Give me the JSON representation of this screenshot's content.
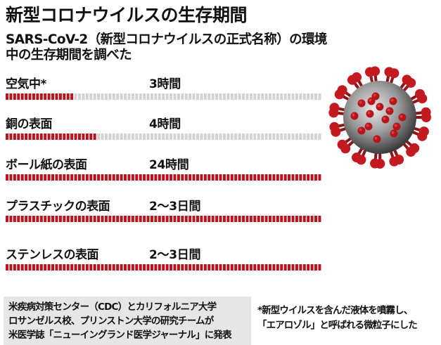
{
  "title": "新型コロナウイルスの生存期間",
  "subtitle": "SARS-CoV-2（新型コロナウイルスの正式名称）の環境中の生存期間を調べた",
  "chart_data": {
    "type": "bar",
    "unit": "hours",
    "categories": [
      "空気中*",
      "銅の表面",
      "ボール紙の表面",
      "プラスチックの表面",
      "ステンレスの表面"
    ],
    "value_labels": [
      "3時間",
      "4時間",
      "24時間",
      "2〜3日間",
      "2〜3日間"
    ],
    "values": [
      3,
      4,
      24,
      72,
      72
    ],
    "xlim": [
      0,
      72
    ],
    "colors": {
      "filled": "#b8141c",
      "empty": "#d3d3d3"
    }
  },
  "source": "米疾病対策センター（CDC）とカリフォルニア大学\nロサンゼルス校、プリンストン大学の研究チームが\n米医学誌「ニューイングランド医学ジャーナル」に発表",
  "note": "*新型ウイルスを含んだ液体を噴霧し、\n「エアロゾル」と呼ばれる微粒子にした",
  "illustration": "coronavirus-illustration"
}
